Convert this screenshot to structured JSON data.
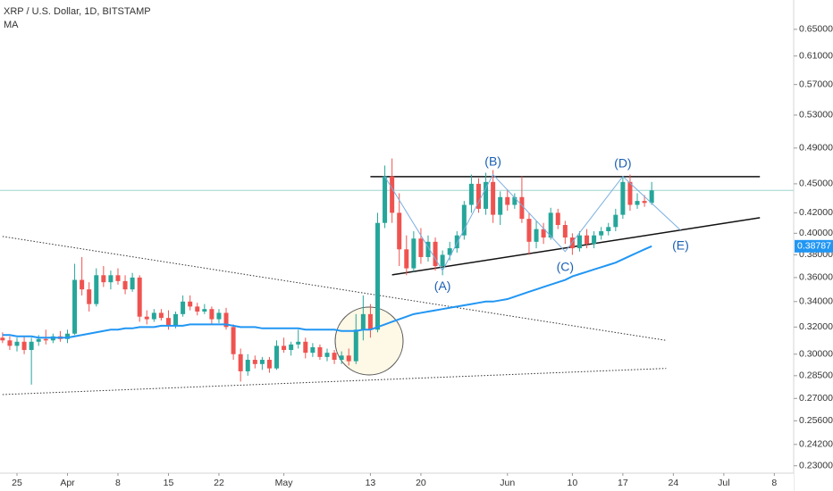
{
  "chart_data": {
    "type": "candlestick",
    "title": "XRP / U.S. Dollar, 1D, BITSTAMP",
    "indicator": "MA",
    "log_scale": true,
    "grid": false,
    "price_line": true,
    "up_color": "#26a69a",
    "down_color": "#ef5350",
    "ylim": [
      0.226,
      0.697
    ],
    "yticks": [
      {
        "value": 0.65,
        "label": "0.65000"
      },
      {
        "value": 0.61,
        "label": "0.61000"
      },
      {
        "value": 0.57,
        "label": "0.57000"
      },
      {
        "value": 0.53,
        "label": "0.53000"
      },
      {
        "value": 0.49,
        "label": "0.49000"
      },
      {
        "value": 0.45,
        "label": "0.45000"
      },
      {
        "value": 0.42,
        "label": "0.42000"
      },
      {
        "value": 0.4,
        "label": "0.40000"
      },
      {
        "value": 0.38,
        "label": "0.38000"
      },
      {
        "value": 0.36,
        "label": "0.36000"
      },
      {
        "value": 0.34,
        "label": "0.34000"
      },
      {
        "value": 0.32,
        "label": "0.32000"
      },
      {
        "value": 0.3,
        "label": "0.30000"
      },
      {
        "value": 0.285,
        "label": "0.28500"
      },
      {
        "value": 0.27,
        "label": "0.27000"
      },
      {
        "value": 0.256,
        "label": "0.25600"
      },
      {
        "value": 0.242,
        "label": "0.24200"
      },
      {
        "value": 0.23,
        "label": "0.23000"
      }
    ],
    "xticks": [
      {
        "value": "03-25",
        "label": "25"
      },
      {
        "value": "04-01",
        "label": "Apr"
      },
      {
        "value": "04-08",
        "label": "8"
      },
      {
        "value": "04-15",
        "label": "15"
      },
      {
        "value": "04-22",
        "label": "22"
      },
      {
        "value": "05-01",
        "label": "May"
      },
      {
        "value": "05-13",
        "label": "13"
      },
      {
        "value": "05-20",
        "label": "20"
      },
      {
        "value": "06-01",
        "label": "Jun"
      },
      {
        "value": "06-10",
        "label": "10"
      },
      {
        "value": "06-17",
        "label": "17"
      },
      {
        "value": "06-24",
        "label": "24"
      },
      {
        "value": "07-01",
        "label": "Jul"
      },
      {
        "value": "07-08",
        "label": "8"
      }
    ],
    "x": [
      "03-23",
      "03-24",
      "03-25",
      "03-26",
      "03-27",
      "03-28",
      "03-29",
      "03-30",
      "03-31",
      "04-01",
      "04-02",
      "04-03",
      "04-04",
      "04-05",
      "04-06",
      "04-07",
      "04-08",
      "04-09",
      "04-10",
      "04-11",
      "04-12",
      "04-13",
      "04-14",
      "04-15",
      "04-16",
      "04-17",
      "04-18",
      "04-19",
      "04-20",
      "04-21",
      "04-22",
      "04-23",
      "04-24",
      "04-25",
      "04-26",
      "04-27",
      "04-28",
      "04-29",
      "04-30",
      "05-01",
      "05-02",
      "05-03",
      "05-04",
      "05-05",
      "05-06",
      "05-07",
      "05-08",
      "05-09",
      "05-10",
      "05-11",
      "05-12",
      "05-13",
      "05-14",
      "05-15",
      "05-16",
      "05-17",
      "05-18",
      "05-19",
      "05-20",
      "05-21",
      "05-22",
      "05-23",
      "05-24",
      "05-25",
      "05-26",
      "05-27",
      "05-28",
      "05-29",
      "05-30",
      "05-31",
      "06-01",
      "06-02",
      "06-03",
      "06-04",
      "06-05",
      "06-06",
      "06-07",
      "06-08",
      "06-09",
      "06-10",
      "06-11",
      "06-12",
      "06-13",
      "06-14",
      "06-15",
      "06-16",
      "06-17",
      "06-18",
      "06-19",
      "06-20",
      "06-21"
    ],
    "open": [
      0.312,
      0.31,
      0.306,
      0.309,
      0.303,
      0.309,
      0.311,
      0.31,
      0.313,
      0.311,
      0.315,
      0.358,
      0.35,
      0.338,
      0.362,
      0.356,
      0.362,
      0.357,
      0.35,
      0.36,
      0.328,
      0.326,
      0.331,
      0.327,
      0.321,
      0.33,
      0.34,
      0.336,
      0.332,
      0.334,
      0.326,
      0.331,
      0.32,
      0.3,
      0.288,
      0.296,
      0.293,
      0.296,
      0.29,
      0.306,
      0.303,
      0.307,
      0.309,
      0.301,
      0.305,
      0.298,
      0.301,
      0.296,
      0.299,
      0.295,
      0.318,
      0.33,
      0.318,
      0.41,
      0.458,
      0.42,
      0.385,
      0.368,
      0.395,
      0.378,
      0.392,
      0.37,
      0.38,
      0.386,
      0.398,
      0.428,
      0.45,
      0.424,
      0.452,
      0.418,
      0.436,
      0.428,
      0.436,
      0.414,
      0.392,
      0.404,
      0.396,
      0.42,
      0.408,
      0.396,
      0.386,
      0.398,
      0.39,
      0.398,
      0.402,
      0.406,
      0.418,
      0.452,
      0.428,
      0.432,
      0.43
    ],
    "high": [
      0.316,
      0.313,
      0.312,
      0.313,
      0.312,
      0.314,
      0.318,
      0.315,
      0.317,
      0.318,
      0.372,
      0.378,
      0.356,
      0.368,
      0.37,
      0.366,
      0.368,
      0.362,
      0.364,
      0.362,
      0.333,
      0.334,
      0.334,
      0.333,
      0.332,
      0.345,
      0.345,
      0.339,
      0.338,
      0.336,
      0.334,
      0.335,
      0.322,
      0.304,
      0.3,
      0.299,
      0.298,
      0.298,
      0.31,
      0.312,
      0.309,
      0.318,
      0.312,
      0.308,
      0.307,
      0.304,
      0.303,
      0.302,
      0.304,
      0.33,
      0.345,
      0.338,
      0.42,
      0.47,
      0.478,
      0.44,
      0.398,
      0.402,
      0.405,
      0.398,
      0.396,
      0.384,
      0.392,
      0.402,
      0.432,
      0.46,
      0.456,
      0.462,
      0.465,
      0.442,
      0.444,
      0.44,
      0.458,
      0.42,
      0.412,
      0.41,
      0.425,
      0.424,
      0.412,
      0.4,
      0.402,
      0.404,
      0.402,
      0.406,
      0.41,
      0.424,
      0.458,
      0.46,
      0.44,
      0.438,
      0.452
    ],
    "low": [
      0.308,
      0.303,
      0.302,
      0.3,
      0.279,
      0.306,
      0.307,
      0.308,
      0.309,
      0.308,
      0.314,
      0.345,
      0.332,
      0.336,
      0.352,
      0.35,
      0.354,
      0.346,
      0.348,
      0.324,
      0.322,
      0.324,
      0.325,
      0.318,
      0.319,
      0.328,
      0.333,
      0.329,
      0.33,
      0.322,
      0.323,
      0.318,
      0.296,
      0.281,
      0.285,
      0.29,
      0.289,
      0.287,
      0.289,
      0.301,
      0.299,
      0.304,
      0.297,
      0.298,
      0.296,
      0.295,
      0.293,
      0.293,
      0.292,
      0.293,
      0.31,
      0.312,
      0.316,
      0.405,
      0.41,
      0.37,
      0.362,
      0.365,
      0.372,
      0.374,
      0.366,
      0.362,
      0.375,
      0.382,
      0.394,
      0.42,
      0.42,
      0.418,
      0.41,
      0.408,
      0.422,
      0.424,
      0.41,
      0.38,
      0.386,
      0.39,
      0.394,
      0.404,
      0.39,
      0.38,
      0.383,
      0.386,
      0.386,
      0.394,
      0.398,
      0.402,
      0.414,
      0.422,
      0.424,
      0.426,
      0.428
    ],
    "close": [
      0.31,
      0.306,
      0.309,
      0.303,
      0.309,
      0.311,
      0.31,
      0.313,
      0.311,
      0.315,
      0.358,
      0.35,
      0.338,
      0.362,
      0.356,
      0.362,
      0.357,
      0.35,
      0.36,
      0.328,
      0.326,
      0.331,
      0.327,
      0.321,
      0.33,
      0.34,
      0.336,
      0.332,
      0.334,
      0.326,
      0.331,
      0.32,
      0.3,
      0.288,
      0.296,
      0.293,
      0.296,
      0.29,
      0.306,
      0.303,
      0.307,
      0.309,
      0.301,
      0.305,
      0.298,
      0.301,
      0.296,
      0.299,
      0.295,
      0.318,
      0.33,
      0.318,
      0.41,
      0.458,
      0.42,
      0.385,
      0.368,
      0.395,
      0.378,
      0.392,
      0.37,
      0.38,
      0.386,
      0.398,
      0.428,
      0.45,
      0.424,
      0.452,
      0.418,
      0.436,
      0.428,
      0.436,
      0.414,
      0.392,
      0.404,
      0.396,
      0.42,
      0.408,
      0.396,
      0.386,
      0.398,
      0.39,
      0.398,
      0.402,
      0.406,
      0.418,
      0.452,
      0.428,
      0.432,
      0.43,
      0.443
    ],
    "ma": {
      "color": "#2196f3",
      "last_value_label": "0.38787",
      "values": [
        0.314,
        0.314,
        0.313,
        0.313,
        0.313,
        0.312,
        0.312,
        0.312,
        0.312,
        0.312,
        0.313,
        0.314,
        0.315,
        0.316,
        0.317,
        0.318,
        0.318,
        0.319,
        0.319,
        0.32,
        0.32,
        0.32,
        0.321,
        0.321,
        0.321,
        0.321,
        0.322,
        0.322,
        0.322,
        0.322,
        0.322,
        0.322,
        0.321,
        0.32,
        0.32,
        0.32,
        0.319,
        0.319,
        0.319,
        0.319,
        0.319,
        0.319,
        0.318,
        0.318,
        0.318,
        0.318,
        0.318,
        0.317,
        0.317,
        0.317,
        0.318,
        0.318,
        0.32,
        0.322,
        0.324,
        0.326,
        0.328,
        0.33,
        0.331,
        0.332,
        0.333,
        0.334,
        0.335,
        0.336,
        0.337,
        0.338,
        0.339,
        0.34,
        0.34,
        0.341,
        0.342,
        0.344,
        0.346,
        0.348,
        0.35,
        0.352,
        0.354,
        0.356,
        0.358,
        0.361,
        0.363,
        0.365,
        0.367,
        0.369,
        0.371,
        0.373,
        0.376,
        0.379,
        0.382,
        0.385,
        0.38787
      ]
    },
    "trend_lines": [
      {
        "style": "solid",
        "color": "#111111",
        "points": [
          {
            "x": "05-13",
            "price": 0.4577
          },
          {
            "x": "07-06",
            "price": 0.4577
          }
        ]
      },
      {
        "style": "solid",
        "color": "#111111",
        "points": [
          {
            "x": "05-16",
            "price": 0.3623
          },
          {
            "x": "07-06",
            "price": 0.4151
          }
        ]
      },
      {
        "style": "dotted",
        "color": "#333333",
        "points": [
          {
            "x": "03-23",
            "price": 0.397
          },
          {
            "x": "06-23",
            "price": 0.31
          }
        ]
      },
      {
        "style": "dotted",
        "color": "#333333",
        "points": [
          {
            "x": "03-23",
            "price": 0.2725
          },
          {
            "x": "06-23",
            "price": 0.29
          }
        ]
      }
    ],
    "wave": {
      "color": "#7aaee0",
      "label_color": "#1a5fb4",
      "points": [
        {
          "x": "05-15",
          "price": 0.4577
        },
        {
          "x": "05-23",
          "price": 0.366,
          "label": "(A)",
          "position": "below"
        },
        {
          "x": "05-30",
          "price": 0.46,
          "label": "(B)",
          "position": "above"
        },
        {
          "x": "06-09",
          "price": 0.383,
          "label": "(C)",
          "position": "below"
        },
        {
          "x": "06-17",
          "price": 0.458,
          "label": "(D)",
          "position": "above"
        },
        {
          "x": "06-25",
          "price": 0.403,
          "label": "(E)",
          "position": "below"
        }
      ]
    }
  }
}
